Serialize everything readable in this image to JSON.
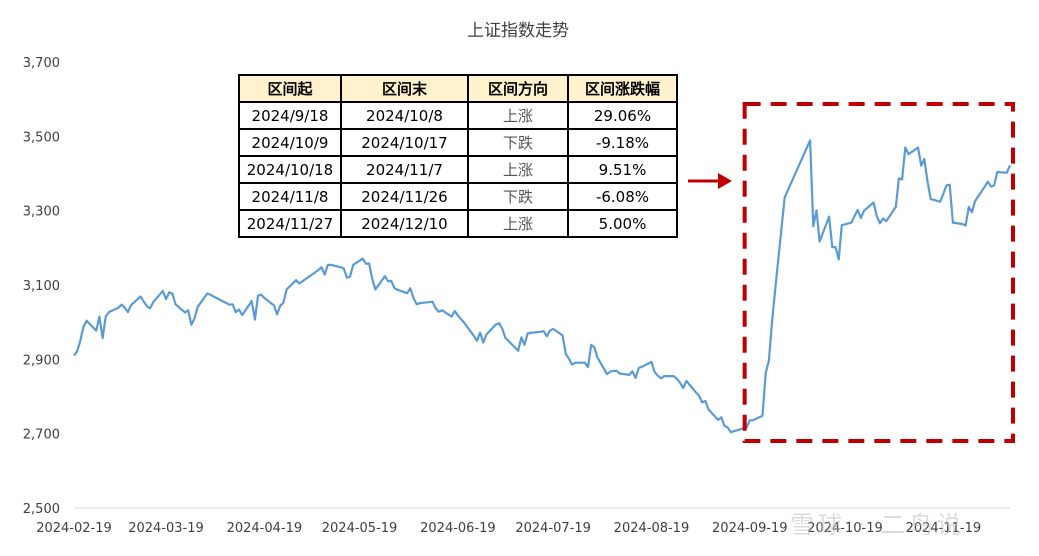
{
  "chart_data": {
    "type": "line",
    "title": "上证指数走势",
    "xlabel": "",
    "ylabel": "",
    "ylim": [
      2500,
      3700
    ],
    "yticks": [
      2500,
      2700,
      2900,
      3100,
      3300,
      3500,
      3700
    ],
    "ytick_labels": [
      "2,500",
      "2,700",
      "2,900",
      "3,100",
      "3,300",
      "3,500",
      "3,700"
    ],
    "xtick_labels": [
      "2024-02-19",
      "2024-03-19",
      "2024-04-19",
      "2024-05-19",
      "2024-06-19",
      "2024-07-19",
      "2024-08-19",
      "2024-09-19",
      "2024-10-19",
      "2024-11-19"
    ],
    "xtick_dates": [
      "2024-02-19",
      "2024-03-19",
      "2024-04-19",
      "2024-05-19",
      "2024-06-19",
      "2024-07-19",
      "2024-08-19",
      "2024-09-19",
      "2024-10-19",
      "2024-11-19"
    ],
    "x_range": [
      "2024-02-19",
      "2024-12-10"
    ],
    "grid": false,
    "series": [
      {
        "color": "#5b9bd5",
        "points": [
          [
            "2024-02-19",
            2910
          ],
          [
            "2024-02-20",
            2922
          ],
          [
            "2024-02-21",
            2950
          ],
          [
            "2024-02-22",
            2988
          ],
          [
            "2024-02-23",
            3004
          ],
          [
            "2024-02-26",
            2977
          ],
          [
            "2024-02-27",
            3015
          ],
          [
            "2024-02-28",
            2957
          ],
          [
            "2024-02-29",
            3015
          ],
          [
            "2024-03-01",
            3027
          ],
          [
            "2024-03-04",
            3039
          ],
          [
            "2024-03-05",
            3047
          ],
          [
            "2024-03-06",
            3039
          ],
          [
            "2024-03-07",
            3027
          ],
          [
            "2024-03-08",
            3046
          ],
          [
            "2024-03-11",
            3069
          ],
          [
            "2024-03-12",
            3055
          ],
          [
            "2024-03-13",
            3043
          ],
          [
            "2024-03-14",
            3037
          ],
          [
            "2024-03-15",
            3054
          ],
          [
            "2024-03-18",
            3084
          ],
          [
            "2024-03-19",
            3062
          ],
          [
            "2024-03-20",
            3080
          ],
          [
            "2024-03-21",
            3077
          ],
          [
            "2024-03-22",
            3048
          ],
          [
            "2024-03-25",
            3026
          ],
          [
            "2024-03-26",
            3032
          ],
          [
            "2024-03-27",
            2993
          ],
          [
            "2024-03-28",
            3011
          ],
          [
            "2024-03-29",
            3041
          ],
          [
            "2024-04-01",
            3077
          ],
          [
            "2024-04-02",
            3074
          ],
          [
            "2024-04-03",
            3069
          ],
          [
            "2024-04-08",
            3047
          ],
          [
            "2024-04-09",
            3048
          ],
          [
            "2024-04-10",
            3027
          ],
          [
            "2024-04-11",
            3034
          ],
          [
            "2024-04-12",
            3019
          ],
          [
            "2024-04-15",
            3057
          ],
          [
            "2024-04-16",
            3007
          ],
          [
            "2024-04-17",
            3071
          ],
          [
            "2024-04-18",
            3074
          ],
          [
            "2024-04-19",
            3065
          ],
          [
            "2024-04-22",
            3045
          ],
          [
            "2024-04-23",
            3021
          ],
          [
            "2024-04-24",
            3044
          ],
          [
            "2024-04-25",
            3052
          ],
          [
            "2024-04-26",
            3088
          ],
          [
            "2024-04-29",
            3113
          ],
          [
            "2024-04-30",
            3104
          ],
          [
            "2024-05-06",
            3140
          ],
          [
            "2024-05-07",
            3148
          ],
          [
            "2024-05-08",
            3128
          ],
          [
            "2024-05-09",
            3154
          ],
          [
            "2024-05-10",
            3154
          ],
          [
            "2024-05-13",
            3148
          ],
          [
            "2024-05-14",
            3145
          ],
          [
            "2024-05-15",
            3120
          ],
          [
            "2024-05-16",
            3122
          ],
          [
            "2024-05-17",
            3154
          ],
          [
            "2024-05-20",
            3171
          ],
          [
            "2024-05-21",
            3157
          ],
          [
            "2024-05-22",
            3158
          ],
          [
            "2024-05-23",
            3116
          ],
          [
            "2024-05-24",
            3088
          ],
          [
            "2024-05-27",
            3124
          ],
          [
            "2024-05-28",
            3110
          ],
          [
            "2024-05-29",
            3111
          ],
          [
            "2024-05-30",
            3091
          ],
          [
            "2024-05-31",
            3087
          ],
          [
            "2024-06-03",
            3078
          ],
          [
            "2024-06-04",
            3091
          ],
          [
            "2024-06-05",
            3065
          ],
          [
            "2024-06-06",
            3048
          ],
          [
            "2024-06-07",
            3051
          ],
          [
            "2024-06-11",
            3055
          ],
          [
            "2024-06-12",
            3037
          ],
          [
            "2024-06-13",
            3028
          ],
          [
            "2024-06-14",
            3032
          ],
          [
            "2024-06-17",
            3015
          ],
          [
            "2024-06-18",
            3030
          ],
          [
            "2024-06-19",
            3018
          ],
          [
            "2024-06-20",
            3008
          ],
          [
            "2024-06-21",
            2998
          ],
          [
            "2024-06-24",
            2963
          ],
          [
            "2024-06-25",
            2950
          ],
          [
            "2024-06-26",
            2972
          ],
          [
            "2024-06-27",
            2945
          ],
          [
            "2024-06-28",
            2967
          ],
          [
            "2024-07-01",
            2994
          ],
          [
            "2024-07-02",
            2997
          ],
          [
            "2024-07-03",
            2982
          ],
          [
            "2024-07-04",
            2957
          ],
          [
            "2024-07-05",
            2949
          ],
          [
            "2024-07-08",
            2923
          ],
          [
            "2024-07-09",
            2959
          ],
          [
            "2024-07-10",
            2939
          ],
          [
            "2024-07-11",
            2970
          ],
          [
            "2024-07-12",
            2971
          ],
          [
            "2024-07-15",
            2974
          ],
          [
            "2024-07-16",
            2976
          ],
          [
            "2024-07-17",
            2962
          ],
          [
            "2024-07-18",
            2977
          ],
          [
            "2024-07-19",
            2982
          ],
          [
            "2024-07-22",
            2964
          ],
          [
            "2024-07-23",
            2915
          ],
          [
            "2024-07-24",
            2901
          ],
          [
            "2024-07-25",
            2886
          ],
          [
            "2024-07-26",
            2891
          ],
          [
            "2024-07-29",
            2891
          ],
          [
            "2024-07-30",
            2879
          ],
          [
            "2024-07-31",
            2939
          ],
          [
            "2024-08-01",
            2932
          ],
          [
            "2024-08-02",
            2905
          ],
          [
            "2024-08-05",
            2860
          ],
          [
            "2024-08-06",
            2867
          ],
          [
            "2024-08-07",
            2869
          ],
          [
            "2024-08-08",
            2869
          ],
          [
            "2024-08-09",
            2862
          ],
          [
            "2024-08-12",
            2858
          ],
          [
            "2024-08-13",
            2868
          ],
          [
            "2024-08-14",
            2850
          ],
          [
            "2024-08-15",
            2877
          ],
          [
            "2024-08-16",
            2880
          ],
          [
            "2024-08-19",
            2893
          ],
          [
            "2024-08-20",
            2866
          ],
          [
            "2024-08-21",
            2856
          ],
          [
            "2024-08-22",
            2849
          ],
          [
            "2024-08-23",
            2855
          ],
          [
            "2024-08-26",
            2855
          ],
          [
            "2024-08-27",
            2848
          ],
          [
            "2024-08-28",
            2837
          ],
          [
            "2024-08-29",
            2823
          ],
          [
            "2024-08-30",
            2842
          ],
          [
            "2024-09-02",
            2811
          ],
          [
            "2024-09-03",
            2802
          ],
          [
            "2024-09-04",
            2784
          ],
          [
            "2024-09-05",
            2788
          ],
          [
            "2024-09-06",
            2765
          ],
          [
            "2024-09-09",
            2737
          ],
          [
            "2024-09-10",
            2744
          ],
          [
            "2024-09-11",
            2721
          ],
          [
            "2024-09-12",
            2717
          ],
          [
            "2024-09-13",
            2704
          ],
          [
            "2024-09-18",
            2717
          ],
          [
            "2024-09-19",
            2736
          ],
          [
            "2024-09-20",
            2736
          ],
          [
            "2024-09-23",
            2748
          ],
          [
            "2024-09-24",
            2863
          ],
          [
            "2024-09-25",
            2897
          ],
          [
            "2024-09-26",
            3000
          ],
          [
            "2024-09-27",
            3088
          ],
          [
            "2024-09-30",
            3336
          ],
          [
            "2024-10-08",
            3489
          ],
          [
            "2024-10-09",
            3258
          ],
          [
            "2024-10-10",
            3301
          ],
          [
            "2024-10-11",
            3217
          ],
          [
            "2024-10-14",
            3284
          ],
          [
            "2024-10-15",
            3202
          ],
          [
            "2024-10-16",
            3202
          ],
          [
            "2024-10-17",
            3169
          ],
          [
            "2024-10-18",
            3261
          ],
          [
            "2024-10-21",
            3268
          ],
          [
            "2024-10-22",
            3285
          ],
          [
            "2024-10-23",
            3302
          ],
          [
            "2024-10-24",
            3280
          ],
          [
            "2024-10-25",
            3300
          ],
          [
            "2024-10-28",
            3322
          ],
          [
            "2024-10-29",
            3286
          ],
          [
            "2024-10-30",
            3266
          ],
          [
            "2024-10-31",
            3279
          ],
          [
            "2024-11-01",
            3272
          ],
          [
            "2024-11-04",
            3310
          ],
          [
            "2024-11-05",
            3387
          ],
          [
            "2024-11-06",
            3384
          ],
          [
            "2024-11-07",
            3470
          ],
          [
            "2024-11-08",
            3452
          ],
          [
            "2024-11-11",
            3470
          ],
          [
            "2024-11-12",
            3421
          ],
          [
            "2024-11-13",
            3439
          ],
          [
            "2024-11-14",
            3379
          ],
          [
            "2024-11-15",
            3331
          ],
          [
            "2024-11-18",
            3324
          ],
          [
            "2024-11-19",
            3346
          ],
          [
            "2024-11-20",
            3368
          ],
          [
            "2024-11-21",
            3370
          ],
          [
            "2024-11-22",
            3268
          ],
          [
            "2024-11-25",
            3264
          ],
          [
            "2024-11-26",
            3260
          ],
          [
            "2024-11-27",
            3310
          ],
          [
            "2024-11-28",
            3296
          ],
          [
            "2024-11-29",
            3326
          ],
          [
            "2024-12-02",
            3364
          ],
          [
            "2024-12-03",
            3378
          ],
          [
            "2024-12-04",
            3365
          ],
          [
            "2024-12-05",
            3368
          ],
          [
            "2024-12-06",
            3404
          ],
          [
            "2024-12-09",
            3402
          ],
          [
            "2024-12-10",
            3422
          ]
        ]
      }
    ],
    "table": {
      "headers": [
        "区间起",
        "区间末",
        "区间方向",
        "区间涨跌幅"
      ],
      "rows": [
        [
          "2024/9/18",
          "2024/10/8",
          "上涨",
          "29.06%"
        ],
        [
          "2024/10/9",
          "2024/10/17",
          "下跌",
          "-9.18%"
        ],
        [
          "2024/10/18",
          "2024/11/7",
          "上涨",
          "9.51%"
        ],
        [
          "2024/11/8",
          "2024/11/26",
          "下跌",
          "-6.08%"
        ],
        [
          "2024/11/27",
          "2024/12/10",
          "上涨",
          "5.00%"
        ]
      ]
    },
    "highlight": {
      "style": "dashed-rectangle",
      "color": "#c00000",
      "start": "2024-09-18",
      "end": "2024-12-10",
      "pointer": "arrow"
    }
  },
  "watermark": "雪球 · 二鸟说"
}
